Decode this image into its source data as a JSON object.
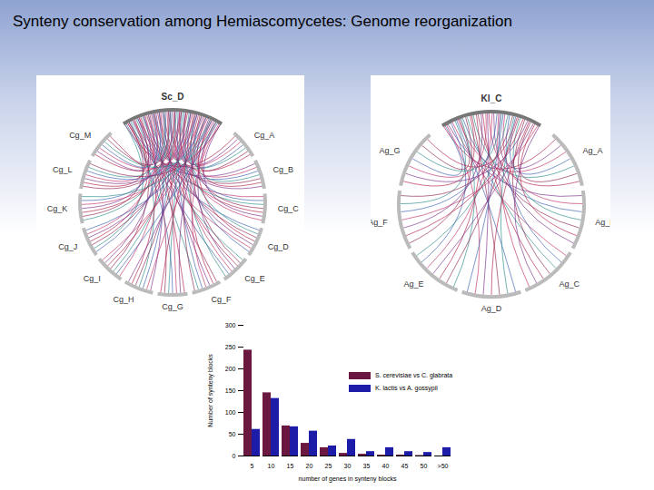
{
  "slide_title": "Synteny conservation among Hemiascomycetes: Genome reorganization",
  "circos_plots": [
    {
      "center": "Sc_D",
      "labels": [
        "Cg_A",
        "Cg_B",
        "Cg_C",
        "Cg_D",
        "Cg_E",
        "Cg_F",
        "Cg_G",
        "Cg_H",
        "Cg_I",
        "Cg_J",
        "Cg_K",
        "Cg_L",
        "Cg_M"
      ]
    },
    {
      "center": "Kl_C",
      "labels": [
        "Ag_A",
        "Ag_B",
        "Ag_C",
        "Ag_D",
        "Ag_E",
        "Ag_F",
        "Ag_G"
      ]
    }
  ],
  "chart_data": {
    "type": "bar",
    "x_label": "number of genes in synteny blocks",
    "y_label": "Number of synteny blocks",
    "categories": [
      "5",
      "10",
      "15",
      "20",
      "25",
      "30",
      "35",
      "40",
      "45",
      "50",
      ">50"
    ],
    "series": [
      {
        "name": "S. cerevisiae vs C. glabrata",
        "color": "#6b1840",
        "values": [
          243,
          145,
          69,
          29,
          19,
          6,
          4,
          2,
          2,
          1,
          0
        ]
      },
      {
        "name": "K. lactis vs A. gossypii",
        "color": "#1c1ca8",
        "values": [
          61,
          132,
          67,
          57,
          23,
          38,
          10,
          19,
          10,
          8,
          19
        ]
      }
    ],
    "ylim": [
      0,
      300
    ],
    "yticks": [
      0,
      50,
      100,
      150,
      200,
      250,
      300
    ],
    "legend": "right",
    "grid": false
  }
}
